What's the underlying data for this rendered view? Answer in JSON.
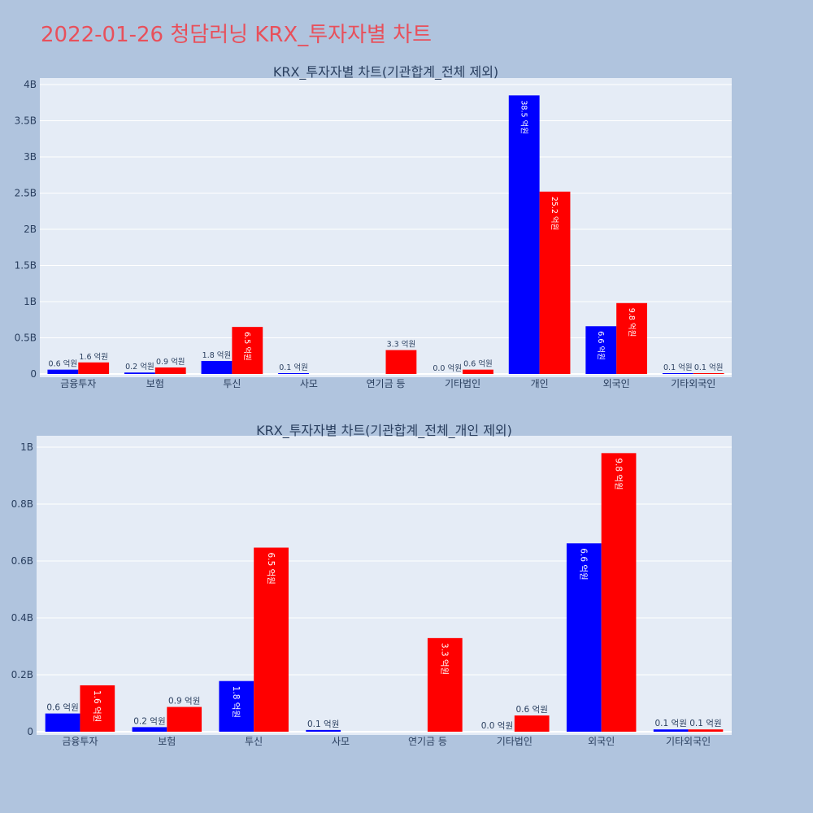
{
  "page_title": "2022-01-26 청담러닝 KRX_투자자별 차트",
  "colors": {
    "background": "#b0c4de",
    "plot_bg": "#e5ecf6",
    "title": "#e8505b",
    "series1": "#0000ff",
    "series2": "#ff0000"
  },
  "chart_data": [
    {
      "type": "bar",
      "title": "KRX_투자자별 차트(기관합계_전체 제외)",
      "categories": [
        "금융투자",
        "보험",
        "투신",
        "사모",
        "연기금 등",
        "기타법인",
        "개인",
        "외국인",
        "기타외국인"
      ],
      "series": [
        {
          "values": [
            0.06,
            0.02,
            0.18,
            0.01,
            0.0,
            0.0,
            3.85,
            0.66,
            0.01
          ],
          "labels": [
            "0.6 억원",
            "0.2 억원",
            "1.8 억원",
            "0.1 억원",
            "",
            "0.0 억원",
            "38.5 억원",
            "6.6 억원",
            "0.1 억원"
          ]
        },
        {
          "values": [
            0.16,
            0.09,
            0.65,
            0.0,
            0.33,
            0.06,
            2.52,
            0.98,
            0.01
          ],
          "labels": [
            "1.6 억원",
            "0.9 억원",
            "6.5 억원",
            "",
            "3.3 억원",
            "0.6 억원",
            "25.2 억원",
            "9.8 억원",
            "0.1 억원"
          ]
        }
      ],
      "yticks": [
        "0",
        "0.5B",
        "1B",
        "1.5B",
        "2B",
        "2.5B",
        "3B",
        "3.5B",
        "4B"
      ],
      "ylim": [
        0,
        4.05
      ],
      "grid": true
    },
    {
      "type": "bar",
      "title": "KRX_투자자별 차트(기관합계_전체_개인 제외)",
      "categories": [
        "금융투자",
        "보험",
        "투신",
        "사모",
        "연기금 등",
        "기타법인",
        "외국인",
        "기타외국인"
      ],
      "series": [
        {
          "values": [
            0.064,
            0.016,
            0.178,
            0.006,
            0.0,
            0.0,
            0.662,
            0.008
          ],
          "labels": [
            "0.6 억원",
            "0.2 억원",
            "1.8 억원",
            "0.1 억원",
            "",
            "0.0 억원",
            "6.6 억원",
            "0.1 억원"
          ]
        },
        {
          "values": [
            0.163,
            0.087,
            0.647,
            0.0,
            0.329,
            0.057,
            0.979,
            0.008
          ],
          "labels": [
            "1.6 억원",
            "0.9 억원",
            "6.5 억원",
            "",
            "3.3 억원",
            "0.6 억원",
            "9.8 억원",
            "0.1 억원"
          ]
        }
      ],
      "yticks": [
        "0",
        "0.2B",
        "0.4B",
        "0.6B",
        "0.8B",
        "1B"
      ],
      "ylim": [
        0,
        1.05
      ],
      "grid": true
    }
  ]
}
